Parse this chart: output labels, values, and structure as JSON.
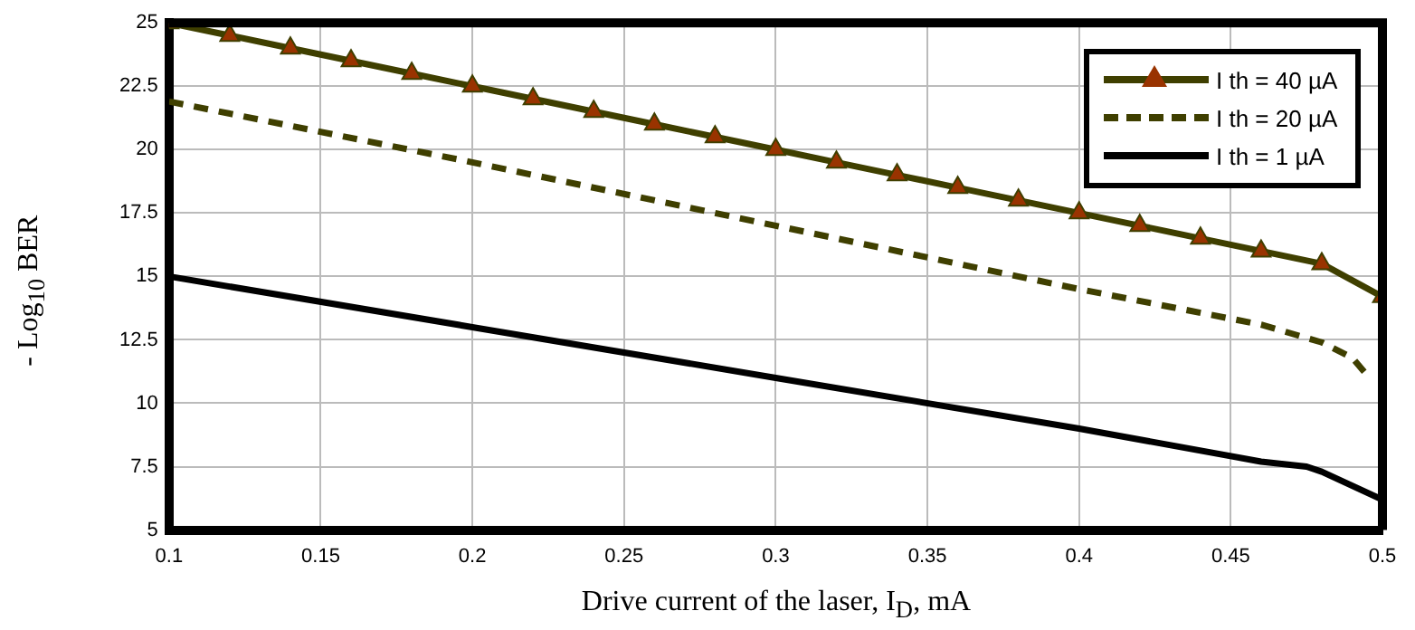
{
  "chart_data": {
    "type": "line",
    "xlabel": "Drive current of the laser, I$_{D}$, mA",
    "ylabel": "- Log$_{10}$ BER",
    "xlim": [
      0.1,
      0.5
    ],
    "xticks": [
      0.1,
      0.15,
      0.2,
      0.25,
      0.3,
      0.35,
      0.4,
      0.45,
      0.5
    ],
    "ylim": [
      5,
      25
    ],
    "yticks": [
      5,
      7.5,
      10,
      12.5,
      15,
      17.5,
      20,
      22.5,
      25
    ],
    "grid": true,
    "legend": "top right",
    "series": [
      {
        "name": "I th = 40 µA",
        "color": "#3f3f00",
        "marker": "triangle",
        "line_style": "solid",
        "x": [
          0.1,
          0.12,
          0.14,
          0.16,
          0.18,
          0.2,
          0.22,
          0.24,
          0.26,
          0.28,
          0.3,
          0.32,
          0.34,
          0.36,
          0.38,
          0.4,
          0.42,
          0.44,
          0.46,
          0.48,
          0.5
        ],
        "values": [
          25,
          24.5,
          24,
          23.5,
          23,
          22.5,
          22,
          21.5,
          21,
          20.5,
          20,
          19.5,
          19,
          18.5,
          18,
          17.5,
          17,
          16.5,
          16,
          15.5,
          14.2
        ]
      },
      {
        "name": "I th = 20 µA",
        "color": "#3f3f00",
        "marker": "none",
        "line_style": "dashed",
        "x": [
          0.1,
          0.2,
          0.3,
          0.4,
          0.46,
          0.48,
          0.49,
          0.495
        ],
        "values": [
          21.9,
          19.5,
          17,
          14.5,
          13.1,
          12.4,
          11.8,
          11.1
        ]
      },
      {
        "name": "I th = 1 µA",
        "color": "#000000",
        "marker": "none",
        "line_style": "solid",
        "x": [
          0.1,
          0.2,
          0.3,
          0.4,
          0.46,
          0.475,
          0.48,
          0.5
        ],
        "values": [
          15,
          13,
          11,
          9,
          7.7,
          7.5,
          7.3,
          6.2
        ]
      }
    ]
  }
}
